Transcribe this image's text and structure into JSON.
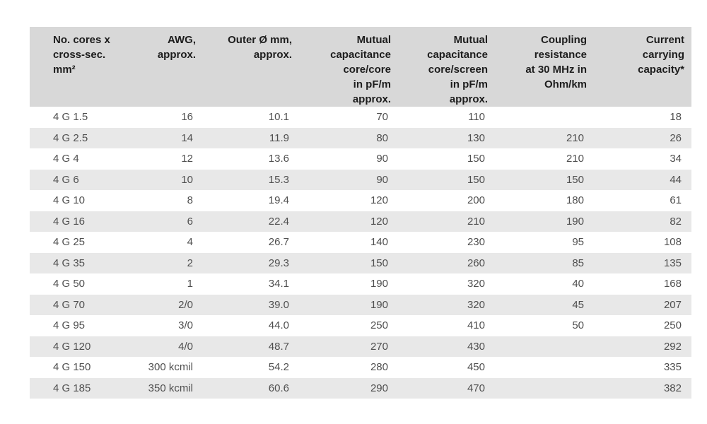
{
  "colors": {
    "header_bg": "#d8d8d8",
    "stripe_bg": "#e8e8e8",
    "header_text": "#1d1d1d",
    "data_text": "#4f4f4f",
    "page_bg": "#ffffff"
  },
  "table": {
    "columns": [
      {
        "id": "cores-cross-section",
        "label": "No. cores x cross-sec. mm²",
        "lines": [
          "No. cores x",
          "cross-sec.",
          "mm²"
        ],
        "align": "left"
      },
      {
        "id": "awg",
        "label": "AWG, approx.",
        "lines": [
          "AWG,",
          "approx."
        ],
        "align": "right"
      },
      {
        "id": "outer-diameter",
        "label": "Outer Ø mm, approx.",
        "lines": [
          "Outer Ø mm,",
          "approx."
        ],
        "align": "right"
      },
      {
        "id": "mutual-capacitance-core-core",
        "label": "Mutual capacitance core/core in pF/m approx.",
        "lines": [
          "Mutual",
          "capacitance",
          "core/core",
          "in pF/m",
          "approx."
        ],
        "align": "right"
      },
      {
        "id": "mutual-capacitance-core-screen",
        "label": "Mutual capacitance core/screen in pF/m approx.",
        "lines": [
          "Mutual",
          "capacitance",
          "core/screen",
          "in pF/m",
          "approx."
        ],
        "align": "right"
      },
      {
        "id": "coupling-resistance",
        "label": "Coupling resistance at 30 MHz in Ohm/km",
        "lines": [
          "Coupling",
          "resistance",
          "at 30 MHz in",
          "Ohm/km"
        ],
        "align": "right"
      },
      {
        "id": "current-carrying-capacity",
        "label": "Current carrying capacity*",
        "lines": [
          "Current",
          "carrying",
          "capacity*"
        ],
        "align": "right"
      }
    ],
    "rows": [
      [
        "4 G 1.5",
        "16",
        "10.1",
        "70",
        "110",
        "",
        "18"
      ],
      [
        "4 G 2.5",
        "14",
        "11.9",
        "80",
        "130",
        "210",
        "26"
      ],
      [
        "4 G 4",
        "12",
        "13.6",
        "90",
        "150",
        "210",
        "34"
      ],
      [
        "4 G 6",
        "10",
        "15.3",
        "90",
        "150",
        "150",
        "44"
      ],
      [
        "4 G 10",
        "8",
        "19.4",
        "120",
        "200",
        "180",
        "61"
      ],
      [
        "4 G 16",
        "6",
        "22.4",
        "120",
        "210",
        "190",
        "82"
      ],
      [
        "4 G 25",
        "4",
        "26.7",
        "140",
        "230",
        "95",
        "108"
      ],
      [
        "4 G 35",
        "2",
        "29.3",
        "150",
        "260",
        "85",
        "135"
      ],
      [
        "4 G 50",
        "1",
        "34.1",
        "190",
        "320",
        "40",
        "168"
      ],
      [
        "4 G 70",
        "2/0",
        "39.0",
        "190",
        "320",
        "45",
        "207"
      ],
      [
        "4 G 95",
        "3/0",
        "44.0",
        "250",
        "410",
        "50",
        "250"
      ],
      [
        "4 G 120",
        "4/0",
        "48.7",
        "270",
        "430",
        "",
        "292"
      ],
      [
        "4 G 150",
        "300 kcmil",
        "54.2",
        "280",
        "450",
        "",
        "335"
      ],
      [
        "4 G 185",
        "350 kcmil",
        "60.6",
        "290",
        "470",
        "",
        "382"
      ]
    ]
  }
}
